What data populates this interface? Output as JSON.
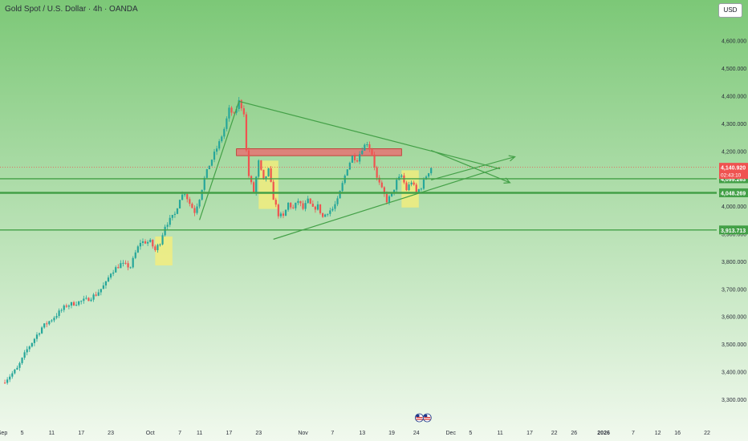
{
  "header": {
    "title": "Gold Spot / U.S. Dollar · 4h · OANDA",
    "currency_button": "USD"
  },
  "colors": {
    "bg_top": "#7cc877",
    "bg_bottom": "#f1f9ee",
    "up": "#26a69a",
    "down": "#ef5350",
    "pattern_line": "#43a047",
    "zone_red": "#e57373",
    "zone_yellow": "#f5ee7a"
  },
  "chart_data": {
    "type": "candlestick",
    "title": "Gold Spot / U.S. Dollar · 4h · OANDA",
    "ylim": [
      3250000,
      4680000
    ],
    "y_ticks": [
      {
        "value": 3300000,
        "label": "3,300.000"
      },
      {
        "value": 3400000,
        "label": "3,400.000"
      },
      {
        "value": 3500000,
        "label": "3,500.000"
      },
      {
        "value": 3600000,
        "label": "3,600.000"
      },
      {
        "value": 3700000,
        "label": "3,700.000"
      },
      {
        "value": 3800000,
        "label": "3,800.000"
      },
      {
        "value": 3900000,
        "label": "3,900.000"
      },
      {
        "value": 4000000,
        "label": "4,000.000"
      },
      {
        "value": 4100000,
        "label": "4,100.000"
      },
      {
        "value": 4200000,
        "label": "4,200.000"
      },
      {
        "value": 4300000,
        "label": "4,300.000"
      },
      {
        "value": 4400000,
        "label": "4,400.000"
      },
      {
        "value": 4500000,
        "label": "4,500.000"
      },
      {
        "value": 4600000,
        "label": "4,600.000"
      }
    ],
    "x_ticks": [
      {
        "day": 0,
        "label": "Sep"
      },
      {
        "day": 4,
        "label": "5"
      },
      {
        "day": 10,
        "label": "11"
      },
      {
        "day": 16,
        "label": "17"
      },
      {
        "day": 22,
        "label": "23"
      },
      {
        "day": 30,
        "label": "Oct"
      },
      {
        "day": 36,
        "label": "7"
      },
      {
        "day": 40,
        "label": "11"
      },
      {
        "day": 46,
        "label": "17"
      },
      {
        "day": 52,
        "label": "23"
      },
      {
        "day": 61,
        "label": "Nov"
      },
      {
        "day": 67,
        "label": "7"
      },
      {
        "day": 73,
        "label": "13"
      },
      {
        "day": 79,
        "label": "19"
      },
      {
        "day": 84,
        "label": "24"
      },
      {
        "day": 91,
        "label": "Dec"
      },
      {
        "day": 95,
        "label": "5"
      },
      {
        "day": 101,
        "label": "11"
      },
      {
        "day": 107,
        "label": "17"
      },
      {
        "day": 112,
        "label": "22"
      },
      {
        "day": 116,
        "label": "26"
      },
      {
        "day": 122,
        "label": "2026"
      },
      {
        "day": 128,
        "label": "7"
      },
      {
        "day": 133,
        "label": "12"
      },
      {
        "day": 137,
        "label": "16"
      },
      {
        "day": 143,
        "label": "22"
      }
    ],
    "price_path": [
      [
        0,
        3360000
      ],
      [
        3,
        3410000
      ],
      [
        5,
        3480000
      ],
      [
        8,
        3560000
      ],
      [
        10,
        3590000
      ],
      [
        13,
        3640000
      ],
      [
        15,
        3650000
      ],
      [
        17,
        3660000
      ],
      [
        19,
        3680000
      ],
      [
        21,
        3720000
      ],
      [
        22,
        3760000
      ],
      [
        24,
        3790000
      ],
      [
        26,
        3780000
      ],
      [
        27,
        3830000
      ],
      [
        28,
        3870000
      ],
      [
        30,
        3870000
      ],
      [
        31,
        3840000
      ],
      [
        32,
        3870000
      ],
      [
        33,
        3930000
      ],
      [
        35,
        3970000
      ],
      [
        36,
        4030000
      ],
      [
        37,
        4050000
      ],
      [
        38,
        4010000
      ],
      [
        39,
        3980000
      ],
      [
        40,
        4030000
      ],
      [
        41,
        4100000
      ],
      [
        42,
        4150000
      ],
      [
        44,
        4230000
      ],
      [
        45,
        4280000
      ],
      [
        46,
        4350000
      ],
      [
        47,
        4330000
      ],
      [
        48,
        4380000
      ],
      [
        49,
        4340000
      ],
      [
        49.5,
        4200000
      ],
      [
        50,
        4110000
      ],
      [
        51,
        4050000
      ],
      [
        52,
        4160000
      ],
      [
        53,
        4090000
      ],
      [
        54,
        4130000
      ],
      [
        55,
        4030000
      ],
      [
        56,
        3970000
      ],
      [
        57,
        3960000
      ],
      [
        58,
        4010000
      ],
      [
        59,
        3990000
      ],
      [
        60,
        4020000
      ],
      [
        61,
        3990000
      ],
      [
        62,
        4020000
      ],
      [
        63,
        3990000
      ],
      [
        64,
        4000000
      ],
      [
        65,
        3960000
      ],
      [
        66,
        3980000
      ],
      [
        67,
        3990000
      ],
      [
        68,
        4020000
      ],
      [
        69,
        4080000
      ],
      [
        70,
        4140000
      ],
      [
        71,
        4180000
      ],
      [
        72,
        4170000
      ],
      [
        73,
        4210000
      ],
      [
        74,
        4230000
      ],
      [
        75,
        4190000
      ],
      [
        76,
        4100000
      ],
      [
        77,
        4060000
      ],
      [
        78,
        4020000
      ],
      [
        79,
        4040000
      ],
      [
        80,
        4090000
      ],
      [
        81,
        4110000
      ],
      [
        82,
        4060000
      ],
      [
        83,
        4090000
      ],
      [
        84,
        4050000
      ],
      [
        85,
        4070000
      ],
      [
        86,
        4110000
      ],
      [
        87,
        4140920
      ]
    ],
    "horizontal_levels": [
      {
        "price": 4099263,
        "label": "4,099.263"
      },
      {
        "price": 4048269,
        "label": "4,048.269"
      },
      {
        "price": 3913713,
        "label": "3,913.713"
      }
    ],
    "current_price": {
      "price": 4140920,
      "label": "4,140.920",
      "countdown": "02:43:10"
    },
    "pattern_lines": [
      {
        "from": [
          48,
          4380000
        ],
        "to": [
          87,
          4200000
        ]
      },
      {
        "from": [
          55,
          3880000
        ],
        "to": [
          101,
          4140000
        ]
      },
      {
        "from": [
          40,
          3950000
        ],
        "to": [
          48,
          4380000
        ]
      }
    ],
    "arrows": [
      {
        "from": [
          87,
          4095000
        ],
        "to": [
          104,
          4179000
        ]
      },
      {
        "from": [
          87,
          4202000
        ],
        "to": [
          103,
          4085000
        ]
      }
    ],
    "zones": [
      {
        "kind": "resistance",
        "x0": 47.5,
        "x1": 81,
        "y0": 4183000,
        "y1": 4208000
      },
      {
        "kind": "highlight",
        "x0": 31,
        "x1": 34.5,
        "y0": 3785000,
        "y1": 3890000
      },
      {
        "kind": "highlight",
        "x0": 52,
        "x1": 56,
        "y0": 3990000,
        "y1": 4165000
      },
      {
        "kind": "highlight",
        "x0": 81,
        "x1": 84.5,
        "y0": 3995000,
        "y1": 4130000
      }
    ]
  }
}
